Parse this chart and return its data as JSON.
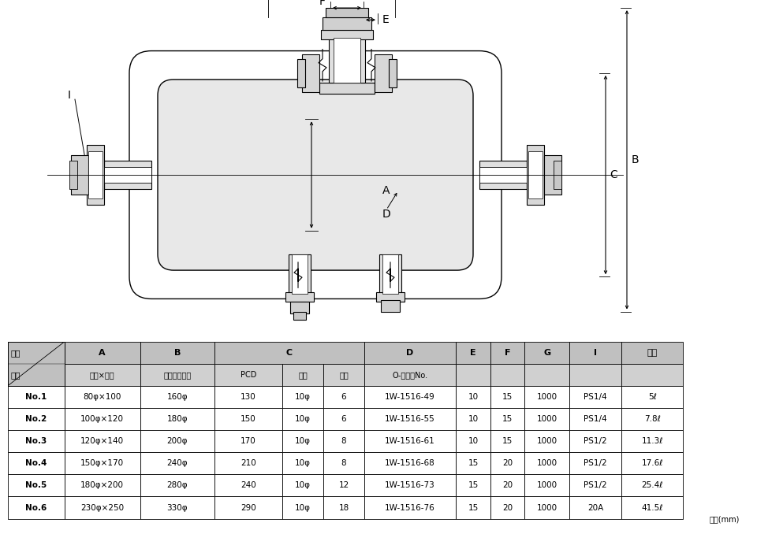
{
  "bg_color": "#ffffff",
  "line_color": "#000000",
  "table_data": {
    "rows": [
      [
        "No.1",
        "80φ×100",
        "160φ",
        "130",
        "10φ",
        "6",
        "1W-1516-49",
        "10",
        "15",
        "1000",
        "PS1/4",
        "5ℓ"
      ],
      [
        "No.2",
        "100φ×120",
        "180φ",
        "150",
        "10φ",
        "6",
        "1W-1516-55",
        "10",
        "15",
        "1000",
        "PS1/4",
        "7.8ℓ"
      ],
      [
        "No.3",
        "120φ×140",
        "200φ",
        "170",
        "10φ",
        "8",
        "1W-1516-61",
        "10",
        "15",
        "1000",
        "PS1/2",
        "11.3ℓ"
      ],
      [
        "No.4",
        "150φ×170",
        "240φ",
        "210",
        "10φ",
        "8",
        "1W-1516-68",
        "15",
        "20",
        "1000",
        "PS1/2",
        "17.6ℓ"
      ],
      [
        "No.5",
        "180φ×200",
        "280φ",
        "240",
        "10φ",
        "12",
        "1W-1516-73",
        "15",
        "20",
        "1000",
        "PS1/2",
        "25.4ℓ"
      ],
      [
        "No.6",
        "230φ×250",
        "330φ",
        "290",
        "10φ",
        "18",
        "1W-1516-76",
        "15",
        "20",
        "1000",
        "20A",
        "41.5ℓ"
      ]
    ]
  }
}
